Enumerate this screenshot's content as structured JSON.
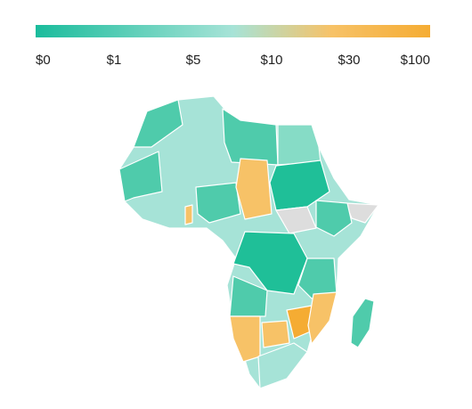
{
  "legend": {
    "labels": [
      "$0",
      "$1",
      "$5",
      "$10",
      "$30",
      "$100"
    ]
  }
}
